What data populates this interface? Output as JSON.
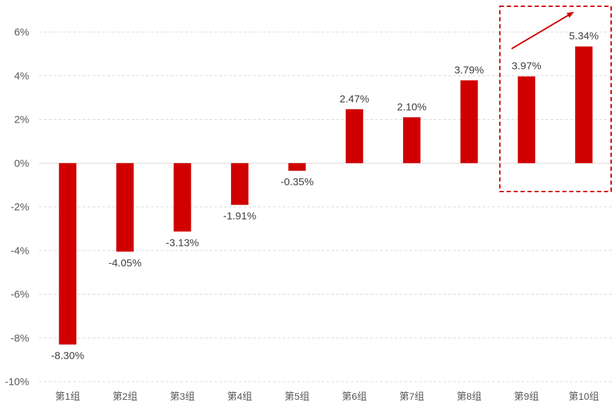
{
  "chart_data": {
    "type": "bar",
    "categories": [
      "第1组",
      "第2组",
      "第3组",
      "第4组",
      "第5组",
      "第6组",
      "第7组",
      "第8组",
      "第9组",
      "第10组"
    ],
    "values": [
      -8.3,
      -4.05,
      -3.13,
      -1.91,
      -0.35,
      2.47,
      2.1,
      3.79,
      3.97,
      5.34
    ],
    "data_labels": [
      "-8.30%",
      "-4.05%",
      "-3.13%",
      "-1.91%",
      "-0.35%",
      "2.47%",
      "2.10%",
      "3.79%",
      "3.97%",
      "5.34%"
    ],
    "y_ticks": [
      6,
      4,
      2,
      0,
      -2,
      -4,
      -6,
      -8,
      -10
    ],
    "y_tick_labels": [
      "6%",
      "4%",
      "2%",
      "0%",
      "-2%",
      "-4%",
      "-6%",
      "-8%",
      "-10%"
    ],
    "ylim": [
      -10,
      6
    ],
    "grid": true,
    "bar_color": "#d00000",
    "annotation": {
      "type": "dashed-box-with-arrow",
      "highlight_categories": [
        "第9组",
        "第10组"
      ],
      "color": "#d00000"
    },
    "title": "",
    "xlabel": "",
    "ylabel": ""
  }
}
